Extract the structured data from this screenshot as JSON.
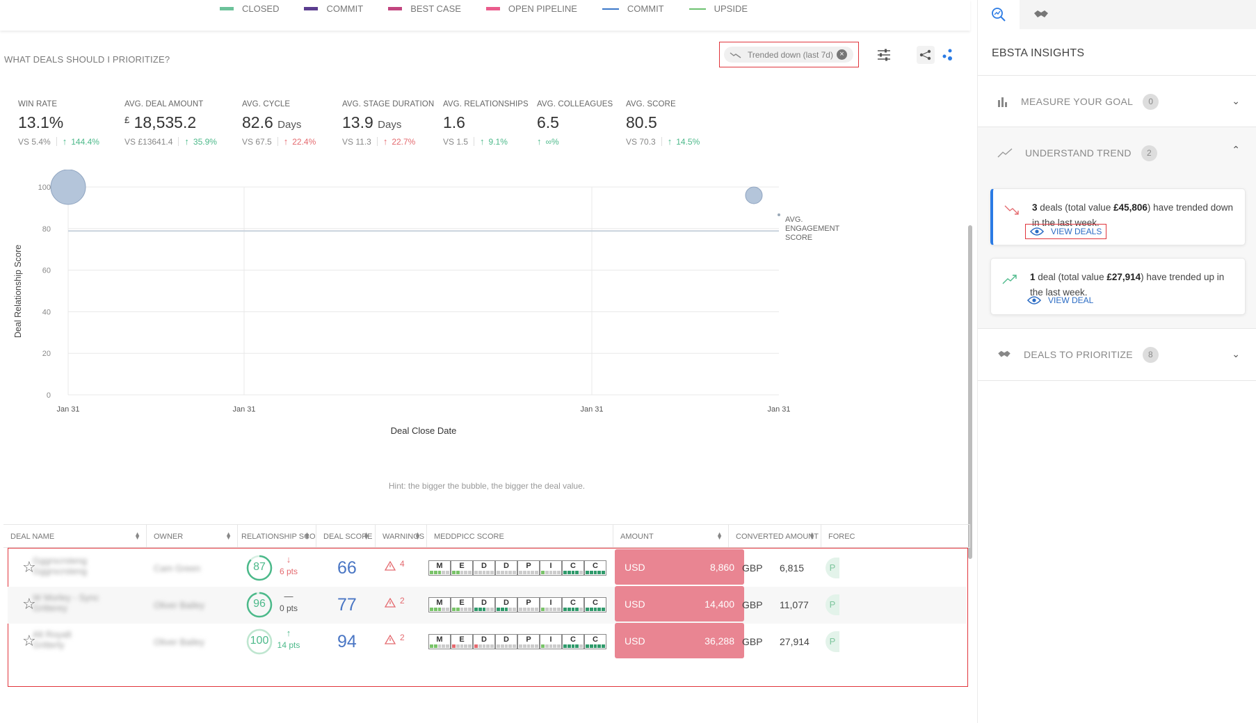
{
  "legend": [
    {
      "label": "CLOSED",
      "color": "#6cc29a",
      "kind": "swatch"
    },
    {
      "label": "COMMIT",
      "color": "#5b3d8f",
      "kind": "swatch"
    },
    {
      "label": "BEST CASE",
      "color": "#c2457f",
      "kind": "swatch"
    },
    {
      "label": "OPEN PIPELINE",
      "color": "#ea5c8c",
      "kind": "swatch"
    },
    {
      "label": "COMMIT",
      "color": "#3a77c9",
      "kind": "line"
    },
    {
      "label": "UPSIDE",
      "color": "#6cc26f",
      "kind": "line"
    }
  ],
  "section": {
    "title": "WHAT DEALS SHOULD I PRIORITIZE?"
  },
  "filter": {
    "chip_label": "Trended down (last 7d)"
  },
  "metrics": [
    {
      "label": "WIN RATE",
      "value": "13.1%",
      "unit": "",
      "currency": "",
      "vs": "VS",
      "vs_value": "5.4%",
      "change": "144.4%",
      "direction": "up"
    },
    {
      "label": "AVG. DEAL AMOUNT",
      "value": "18,535.2",
      "unit": "",
      "currency": "£",
      "vs": "VS",
      "vs_value": "£13641.4",
      "change": "35.9%",
      "direction": "up"
    },
    {
      "label": "AVG. CYCLE",
      "value": "82.6",
      "unit": "Days",
      "currency": "",
      "vs": "VS",
      "vs_value": "67.5",
      "change": "22.4%",
      "direction": "down"
    },
    {
      "label": "AVG. STAGE DURATION",
      "value": "13.9",
      "unit": "Days",
      "currency": "",
      "vs": "VS",
      "vs_value": "11.3",
      "change": "22.7%",
      "direction": "down"
    },
    {
      "label": "AVG. RELATIONSHIPS",
      "value": "1.6",
      "unit": "",
      "currency": "",
      "vs": "VS",
      "vs_value": "1.5",
      "change": "9.1%",
      "direction": "up"
    },
    {
      "label": "AVG. COLLEAGUES",
      "value": "6.5",
      "unit": "",
      "currency": "",
      "vs": "",
      "vs_value": "",
      "change": "∞%",
      "direction": "up"
    },
    {
      "label": "AVG. SCORE",
      "value": "80.5",
      "unit": "",
      "currency": "",
      "vs": "VS",
      "vs_value": "70.3",
      "change": "14.5%",
      "direction": "up"
    }
  ],
  "chart": {
    "ylabel": "Deal Relationship Score",
    "xlabel": "Deal Close Date",
    "yticks": [
      "0",
      "20",
      "40",
      "60",
      "80",
      "100"
    ],
    "xticks": [
      "Jan 31",
      "Jan 31",
      "Jan 31",
      "Jan 31"
    ],
    "avg_label_lines": [
      "AVG.",
      "ENGAGEMENT",
      "SCORE"
    ],
    "hint": "Hint: the bigger the bubble, the bigger the deal value."
  },
  "chart_data": {
    "type": "scatter",
    "xlabel": "Deal Close Date",
    "ylabel": "Deal Relationship Score",
    "ylim": [
      0,
      100
    ],
    "points": [
      {
        "x": "Jan 31",
        "y": 100,
        "size": "large"
      },
      {
        "x": "Jan 31",
        "y": 96,
        "size": "small"
      }
    ],
    "reference_line": {
      "label": "AVG. ENGAGEMENT SCORE",
      "y": 80.5
    },
    "grid": true
  },
  "table": {
    "headers": [
      "DEAL NAME",
      "OWNER",
      "RELATIONSHIP SCORE",
      "DEAL SCORE",
      "WARNINGS",
      "MEDDPICC SCORE",
      "AMOUNT",
      "CONVERTED AMOUNT",
      "FOREC"
    ],
    "meddpicc_letters": [
      "M",
      "E",
      "D",
      "D",
      "P",
      "I",
      "C",
      "C"
    ],
    "rows": [
      {
        "deal": "Gggrscrsteng",
        "deal_sub": "Gggrscrsteng",
        "owner": "Cam Green",
        "rel_score": "87",
        "rel_change": "6 pts",
        "rel_dir": "down",
        "deal_score": "66",
        "warnings": "4",
        "currency": "USD",
        "amount": "8,860",
        "conv_currency": "GBP",
        "conv_amount": "6,815",
        "forecast": "P"
      },
      {
        "deal": "W Morley - Sync",
        "deal_sub": "Gritterey",
        "owner": "Oliver Bailey",
        "rel_score": "96",
        "rel_change": "0 pts",
        "rel_dir": "flat",
        "deal_score": "77",
        "warnings": "2",
        "currency": "USD",
        "amount": "14,400",
        "conv_currency": "GBP",
        "conv_amount": "11,077",
        "forecast": "P"
      },
      {
        "deal": "Alt Royalt",
        "deal_sub": "Gritterly",
        "owner": "Oliver Bailey",
        "rel_score": "100",
        "rel_change": "14 pts",
        "rel_dir": "up",
        "deal_score": "94",
        "warnings": "2",
        "currency": "USD",
        "amount": "36,288",
        "conv_currency": "GBP",
        "conv_amount": "27,914",
        "forecast": "P"
      }
    ]
  },
  "sidebar": {
    "title": "EBSTA INSIGHTS",
    "sections": [
      {
        "label": "MEASURE YOUR GOAL",
        "badge": "0"
      },
      {
        "label": "UNDERSTAND TREND",
        "badge": "2"
      },
      {
        "label": "DEALS TO PRIORITIZE",
        "badge": "8"
      }
    ],
    "insights": [
      {
        "count": "3",
        "text1": " deals (total value ",
        "value": "£45,806",
        "text2": ") have trended down in the last week.",
        "link": "VIEW DEALS"
      },
      {
        "count": "1",
        "text1": " deal (total value ",
        "value": "£27,914",
        "text2": ") have trended up in the last week.",
        "link": "VIEW DEAL"
      }
    ]
  }
}
